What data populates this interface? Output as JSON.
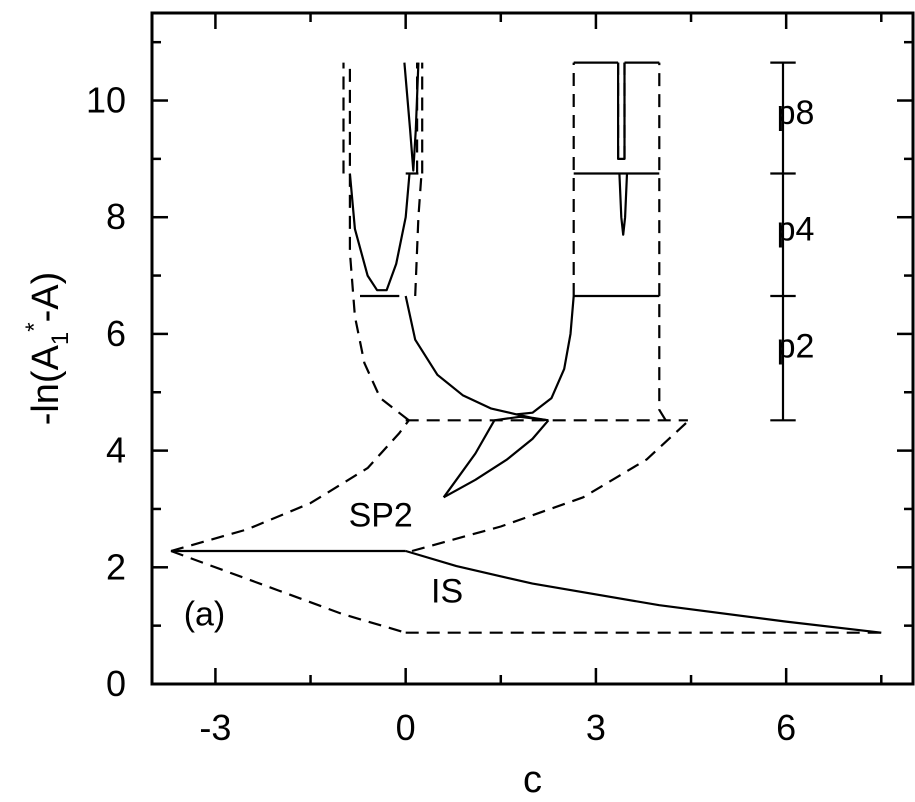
{
  "chart_data": {
    "type": "line",
    "xlabel": "c",
    "ylabel": "-ln(A1*-A)",
    "ylabel_parts": {
      "a": "-ln(A",
      "sub": "1",
      "sup": "*",
      "b": "-A)"
    },
    "xlim": [
      -4,
      8
    ],
    "ylim": [
      0,
      11.5
    ],
    "x_ticks": [
      {
        "value": -3,
        "label": "-3"
      },
      {
        "value": 0,
        "label": "0"
      },
      {
        "value": 3,
        "label": "3"
      },
      {
        "value": 6,
        "label": "6"
      }
    ],
    "y_ticks": [
      {
        "value": 0,
        "label": "0"
      },
      {
        "value": 2,
        "label": "2"
      },
      {
        "value": 4,
        "label": "4"
      },
      {
        "value": 6,
        "label": "6"
      },
      {
        "value": 8,
        "label": "8"
      },
      {
        "value": 10,
        "label": "10"
      }
    ],
    "x_minor_ticks": [
      -1.5,
      1.5,
      4.5,
      7.5
    ],
    "y_minor_ticks": [
      1,
      3,
      5,
      7,
      9,
      11
    ],
    "annotations": [
      {
        "text": "(a)",
        "x": -3.5,
        "y": 1.0
      },
      {
        "text": "IS",
        "x": 0.4,
        "y": 1.4
      },
      {
        "text": "SP2",
        "x": -0.9,
        "y": 2.7
      },
      {
        "text": "p8",
        "x": 5.85,
        "y": 9.6
      },
      {
        "text": "p4",
        "x": 5.85,
        "y": 7.6
      },
      {
        "text": "p2",
        "x": 5.85,
        "y": 5.6
      }
    ],
    "series": [
      {
        "style": "solid",
        "points": [
          [
            -3.7,
            2.28
          ],
          [
            0.0,
            2.28
          ]
        ]
      },
      {
        "style": "solid",
        "points": [
          [
            0.0,
            2.28
          ],
          [
            0.8,
            2.02
          ],
          [
            2.0,
            1.72
          ],
          [
            4.0,
            1.35
          ],
          [
            6.0,
            1.07
          ],
          [
            7.5,
            0.88
          ]
        ]
      },
      {
        "style": "dashed",
        "points": [
          [
            -3.7,
            2.28
          ],
          [
            -2.5,
            2.65
          ],
          [
            -1.5,
            3.1
          ],
          [
            -0.6,
            3.7
          ],
          [
            -0.1,
            4.3
          ],
          [
            0.05,
            4.52
          ]
        ]
      },
      {
        "style": "dashed",
        "points": [
          [
            -3.7,
            2.28
          ],
          [
            -2.0,
            1.6
          ],
          [
            -1.0,
            1.2
          ],
          [
            0.0,
            0.88
          ]
        ]
      },
      {
        "style": "dashed",
        "points": [
          [
            0.0,
            0.88
          ],
          [
            7.5,
            0.88
          ]
        ]
      },
      {
        "style": "dashed",
        "points": [
          [
            0.1,
            2.28
          ],
          [
            1.5,
            2.7
          ],
          [
            2.8,
            3.2
          ],
          [
            3.8,
            3.85
          ],
          [
            4.45,
            4.5
          ]
        ]
      },
      {
        "style": "dashed",
        "points": [
          [
            0.0,
            4.52
          ],
          [
            4.45,
            4.52
          ]
        ]
      },
      {
        "style": "dashed",
        "points": [
          [
            0.05,
            4.52
          ],
          [
            -0.4,
            4.9
          ],
          [
            -0.65,
            5.5
          ],
          [
            -0.8,
            6.3
          ],
          [
            -0.88,
            7.4
          ],
          [
            -0.88,
            10.65
          ]
        ]
      },
      {
        "style": "dashed",
        "points": [
          [
            -0.98,
            8.75
          ],
          [
            -0.98,
            10.65
          ]
        ]
      },
      {
        "style": "dashed",
        "points": [
          [
            0.15,
            6.65
          ],
          [
            0.2,
            8.0
          ],
          [
            0.25,
            8.75
          ]
        ]
      },
      {
        "style": "dashed",
        "points": [
          [
            0.18,
            8.75
          ],
          [
            0.18,
            10.65
          ]
        ]
      },
      {
        "style": "dashed",
        "points": [
          [
            0.26,
            8.75
          ],
          [
            0.26,
            10.65
          ]
        ]
      },
      {
        "style": "dashed",
        "points": [
          [
            4.1,
            4.52
          ],
          [
            4.0,
            4.7
          ],
          [
            4.0,
            10.65
          ]
        ]
      },
      {
        "style": "dashed",
        "points": [
          [
            2.65,
            6.65
          ],
          [
            2.65,
            10.65
          ]
        ]
      },
      {
        "style": "dashed",
        "points": [
          [
            3.35,
            9.0
          ],
          [
            3.35,
            10.65
          ]
        ]
      },
      {
        "style": "dashed",
        "points": [
          [
            3.45,
            9.0
          ],
          [
            3.45,
            10.65
          ]
        ]
      },
      {
        "style": "solid",
        "points": [
          [
            0.0,
            6.65
          ],
          [
            0.15,
            5.9
          ],
          [
            0.5,
            5.3
          ],
          [
            0.9,
            4.95
          ],
          [
            1.35,
            4.72
          ],
          [
            1.75,
            4.62
          ],
          [
            2.0,
            4.65
          ],
          [
            2.3,
            4.9
          ],
          [
            2.5,
            5.4
          ],
          [
            2.6,
            6.0
          ],
          [
            2.65,
            6.65
          ]
        ]
      },
      {
        "style": "solid",
        "points": [
          [
            1.75,
            4.62
          ],
          [
            2.0,
            4.56
          ],
          [
            2.25,
            4.52
          ]
        ]
      },
      {
        "style": "solid",
        "points": [
          [
            1.4,
            4.52
          ],
          [
            1.1,
            3.95
          ],
          [
            0.8,
            3.5
          ],
          [
            0.6,
            3.2
          ]
        ]
      },
      {
        "style": "solid",
        "points": [
          [
            0.6,
            3.2
          ],
          [
            1.1,
            3.5
          ],
          [
            1.6,
            3.85
          ],
          [
            2.0,
            4.2
          ],
          [
            2.25,
            4.52
          ]
        ]
      },
      {
        "style": "solid",
        "points": [
          [
            1.4,
            4.52
          ],
          [
            1.8,
            4.58
          ],
          [
            2.25,
            4.52
          ]
        ]
      },
      {
        "style": "solid",
        "points": [
          [
            -0.72,
            6.65
          ],
          [
            -0.72,
            6.65
          ]
        ]
      },
      {
        "style": "solid",
        "points": [
          [
            -0.72,
            6.65
          ],
          [
            -0.1,
            6.65
          ]
        ]
      },
      {
        "style": "solid",
        "points": [
          [
            -0.88,
            8.75
          ],
          [
            -0.8,
            7.8
          ],
          [
            -0.6,
            7.0
          ],
          [
            -0.45,
            6.75
          ],
          [
            -0.3,
            6.75
          ],
          [
            -0.15,
            7.2
          ],
          [
            0.0,
            8.0
          ],
          [
            0.06,
            8.75
          ]
        ]
      },
      {
        "style": "solid",
        "points": [
          [
            0.0,
            8.75
          ],
          [
            0.2,
            8.75
          ]
        ]
      },
      {
        "style": "solid",
        "points": [
          [
            -0.02,
            10.65
          ],
          [
            0.07,
            9.5
          ],
          [
            0.12,
            8.8
          ],
          [
            0.16,
            9.5
          ],
          [
            0.2,
            10.65
          ]
        ]
      },
      {
        "style": "solid",
        "points": [
          [
            2.65,
            6.65
          ],
          [
            4.0,
            6.65
          ]
        ]
      },
      {
        "style": "solid",
        "points": [
          [
            2.65,
            8.75
          ],
          [
            4.0,
            8.75
          ]
        ]
      },
      {
        "style": "solid",
        "points": [
          [
            2.65,
            10.65
          ],
          [
            3.35,
            10.65
          ]
        ]
      },
      {
        "style": "solid",
        "points": [
          [
            3.45,
            10.65
          ],
          [
            4.0,
            10.65
          ]
        ]
      },
      {
        "style": "solid",
        "points": [
          [
            3.35,
            10.65
          ],
          [
            3.35,
            9.0
          ],
          [
            3.45,
            9.0
          ],
          [
            3.45,
            10.65
          ]
        ]
      },
      {
        "style": "solid",
        "points": [
          [
            3.37,
            8.75
          ],
          [
            3.4,
            8.0
          ],
          [
            3.43,
            7.7
          ],
          [
            3.46,
            8.0
          ],
          [
            3.49,
            8.75
          ]
        ]
      },
      {
        "style": "solid",
        "points": [
          [
            5.95,
            4.52
          ],
          [
            5.95,
            10.65
          ]
        ]
      },
      {
        "style": "solid",
        "points": [
          [
            5.75,
            4.52
          ],
          [
            6.15,
            4.52
          ]
        ]
      },
      {
        "style": "solid",
        "points": [
          [
            5.75,
            6.65
          ],
          [
            6.15,
            6.65
          ]
        ]
      },
      {
        "style": "solid",
        "points": [
          [
            5.75,
            8.75
          ],
          [
            6.15,
            8.75
          ]
        ]
      },
      {
        "style": "solid",
        "points": [
          [
            5.75,
            10.65
          ],
          [
            6.15,
            10.65
          ]
        ]
      }
    ]
  }
}
